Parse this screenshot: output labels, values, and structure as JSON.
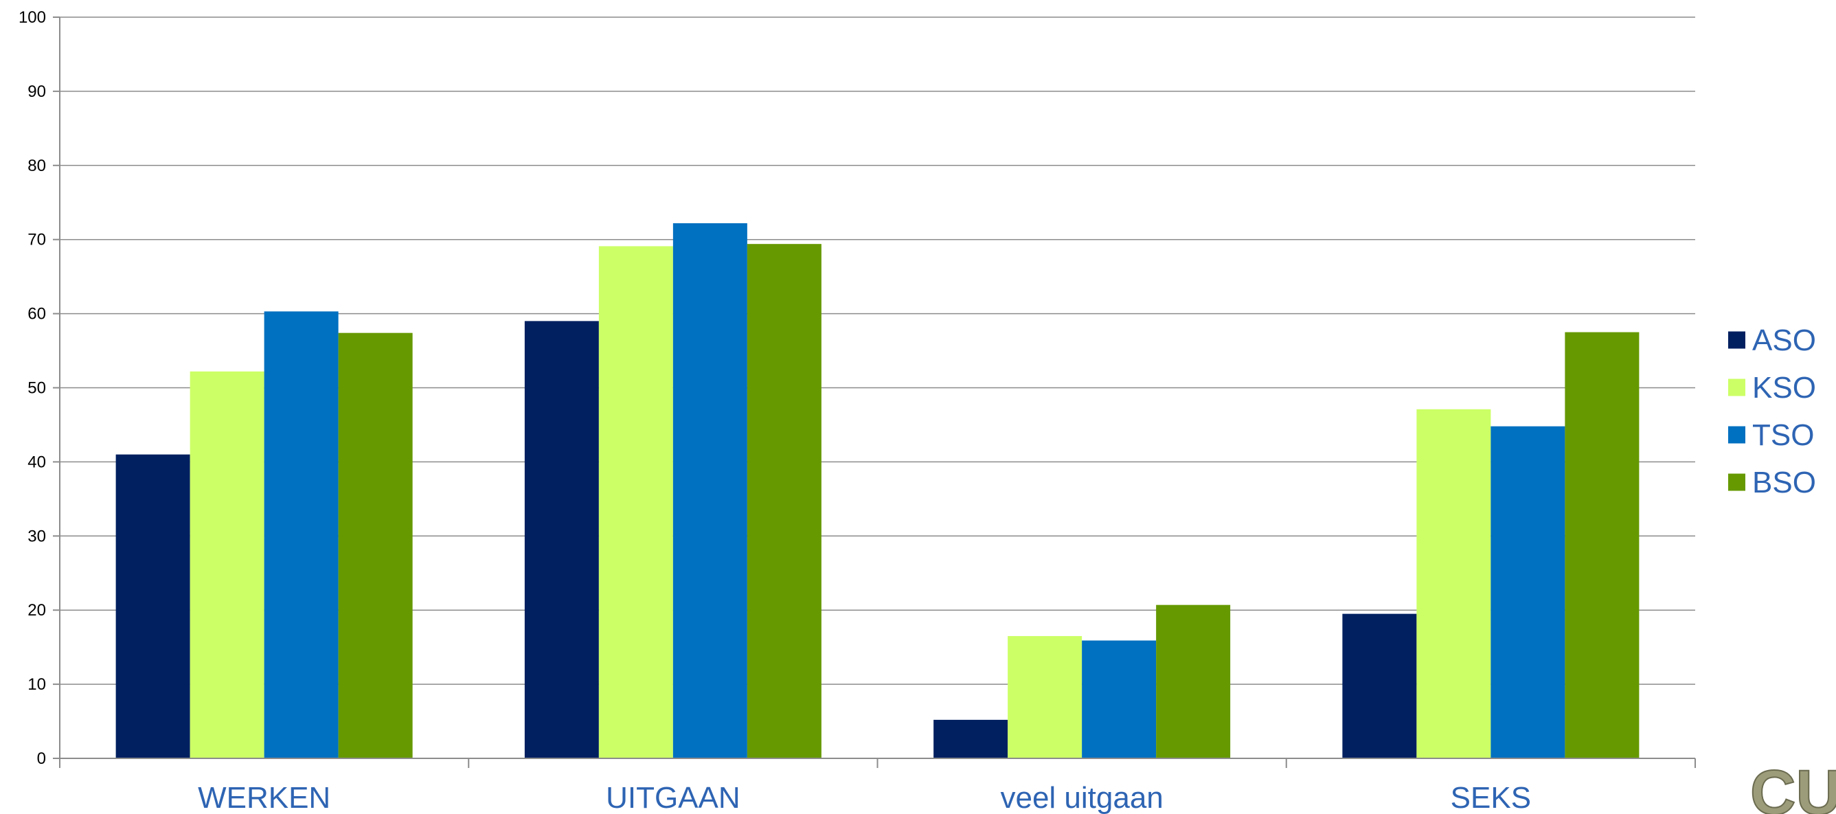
{
  "chart_data": {
    "type": "bar",
    "categories": [
      "WERKEN",
      "UITGAAN",
      "veel uitgaan",
      "SEKS"
    ],
    "series": [
      {
        "name": "ASO",
        "values": [
          41,
          59,
          5.2,
          19.5
        ]
      },
      {
        "name": "KSO",
        "values": [
          52.2,
          69.1,
          16.5,
          47.1
        ]
      },
      {
        "name": "TSO",
        "values": [
          60.3,
          72.2,
          15.9,
          44.8
        ]
      },
      {
        "name": "BSO",
        "values": [
          57.4,
          69.4,
          20.7,
          57.5
        ]
      }
    ],
    "ylim": [
      0,
      100
    ],
    "yticks": [
      0,
      10,
      20,
      30,
      40,
      50,
      60,
      70,
      80,
      90,
      100
    ],
    "grid": true,
    "legend_position": "right",
    "colors": {
      "ASO": "#002060",
      "KSO": "#ccff66",
      "TSO": "#0070c0",
      "BSO": "#669900",
      "category_label": "#2e64b3",
      "legend_label": "#2e64b3"
    }
  },
  "logo": {
    "icon": "cu-logo-icon",
    "text": "CU",
    "color": "#9c9c7a"
  }
}
